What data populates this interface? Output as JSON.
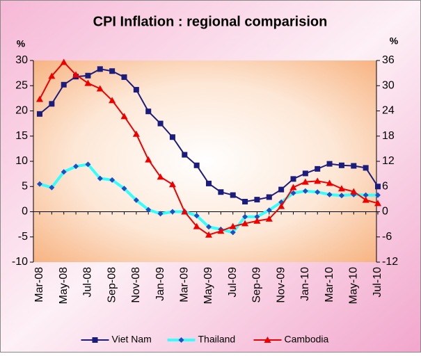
{
  "chart_data": {
    "type": "line",
    "title": "CPI Inflation : regional comparision",
    "y_label": "%",
    "y2_label": "%",
    "categories": [
      "Mar-08",
      null,
      "May-08",
      null,
      "Jul-08",
      null,
      "Sep-08",
      null,
      "Nov-08",
      null,
      "Jan-09",
      null,
      "Mar-09",
      null,
      "May-09",
      null,
      "Jul-09",
      null,
      "Sep-09",
      null,
      "Nov-09",
      null,
      "Jan-10",
      null,
      "Mar-10",
      null,
      "May-10",
      null,
      "Jul-10"
    ],
    "series": [
      {
        "name": "Viet Nam",
        "color": "#1c1c7c",
        "marker": "square",
        "values": [
          19.4,
          21.4,
          25.2,
          26.8,
          27.0,
          28.3,
          27.9,
          26.7,
          24.2,
          19.9,
          17.5,
          14.8,
          11.3,
          9.2,
          5.6,
          3.9,
          3.3,
          2.0,
          2.4,
          2.9,
          4.4,
          6.5,
          7.6,
          8.5,
          9.5,
          9.2,
          9.1,
          8.7,
          5.0
        ]
      },
      {
        "name": "Thailand",
        "color": "#33ffff",
        "marker": "diamond",
        "values": [
          5.5,
          4.8,
          7.9,
          9.0,
          9.4,
          6.6,
          6.3,
          4.6,
          2.3,
          0.4,
          -0.4,
          0.0,
          0.0,
          -0.8,
          -3.0,
          -3.5,
          -4.1,
          -1.0,
          -1.0,
          0.3,
          1.9,
          3.7,
          4.1,
          3.9,
          3.4,
          3.2,
          3.4,
          3.3,
          3.3
        ]
      },
      {
        "name": "Cambodia",
        "color": "#ee0000",
        "marker": "triangle",
        "axis": "y2",
        "values": [
          26.8,
          32.3,
          35.6,
          32.6,
          30.6,
          29.3,
          26.5,
          22.7,
          18.5,
          12.4,
          8.3,
          6.5,
          0.0,
          -3.5,
          -5.5,
          -4.6,
          -3.5,
          -2.8,
          -2.2,
          -1.7,
          1.3,
          5.8,
          7.1,
          7.3,
          6.8,
          5.5,
          4.8,
          2.8,
          2.0
        ]
      }
    ],
    "ylim": [
      -10,
      30
    ],
    "yticks": [
      -10,
      -5,
      0,
      5,
      10,
      15,
      20,
      25,
      30
    ],
    "y2lim": [
      -12,
      36
    ],
    "y2ticks": [
      -12,
      -6,
      0,
      6,
      12,
      18,
      24,
      30,
      36
    ],
    "legend": "bottom"
  }
}
